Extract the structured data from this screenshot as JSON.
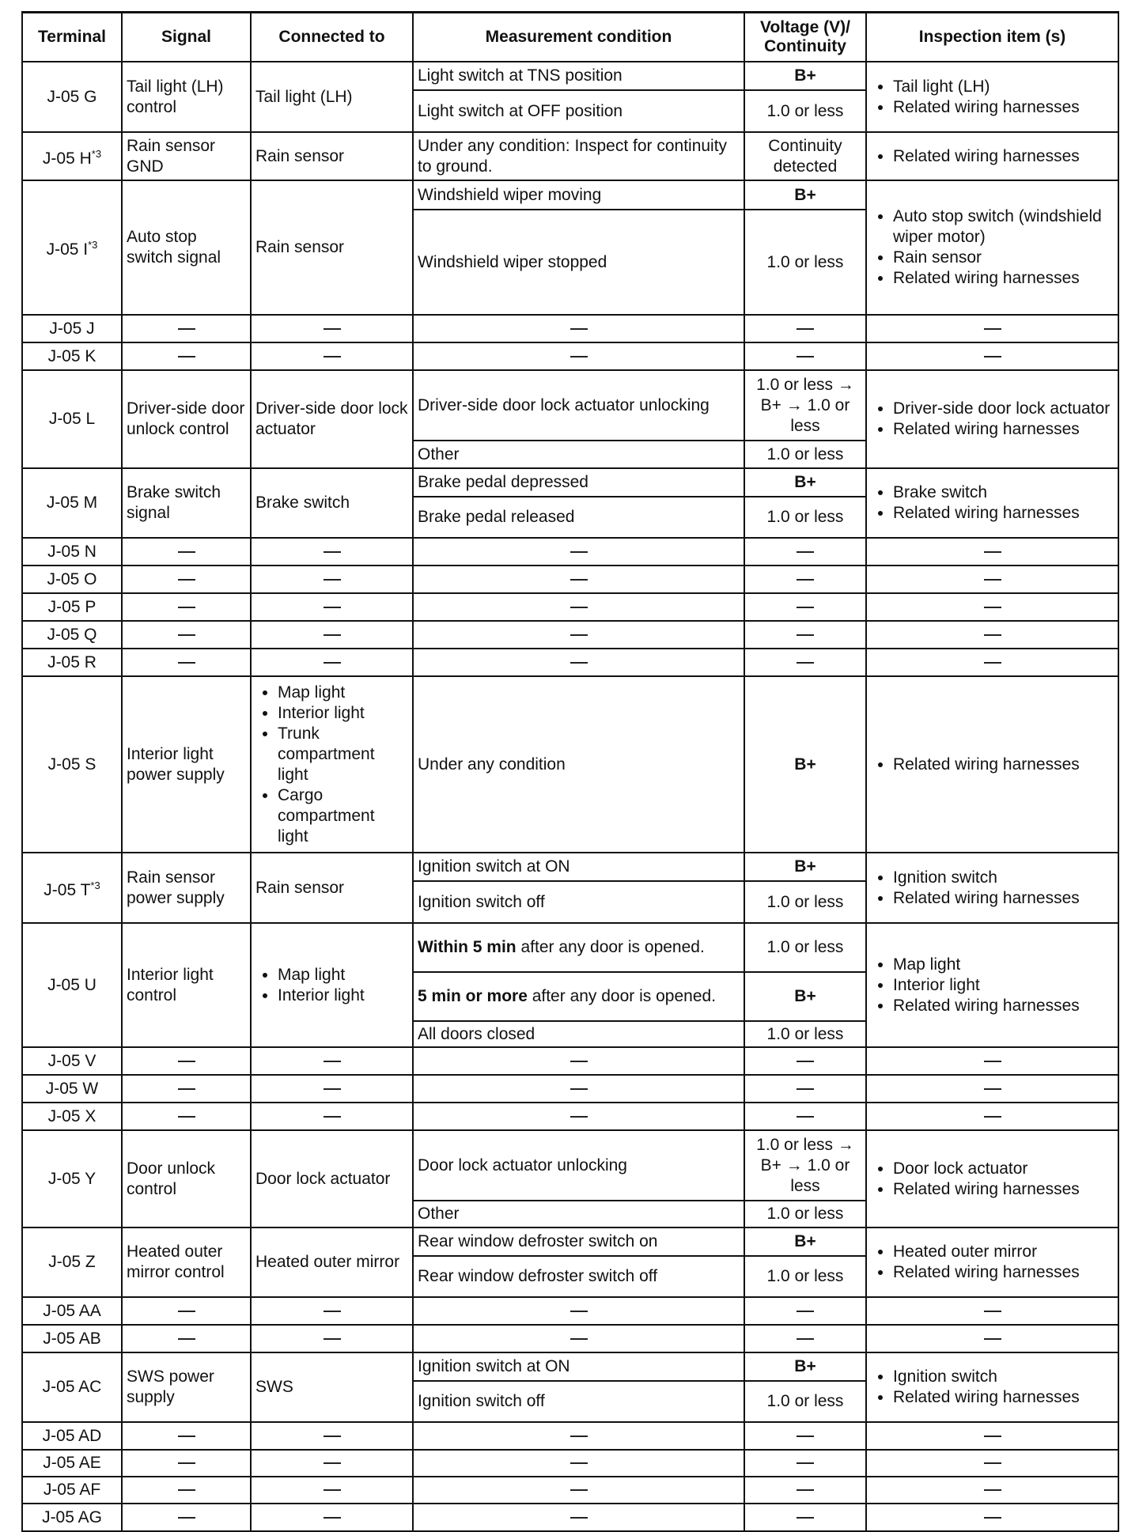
{
  "headers": [
    "Terminal",
    "Signal",
    "Connected to",
    "Measurement condition",
    "Voltage (V)/ Continuity",
    "Inspection item (s)"
  ],
  "rows": [
    {
      "terminal": "J-05 G",
      "sup": "",
      "signal": "Tail light (LH) control",
      "connected": [
        "Tail light (LH)"
      ],
      "conditions": [
        {
          "bold": "",
          "text": "Light switch at TNS position",
          "value": "B+"
        },
        {
          "bold": "",
          "text": "Light switch at OFF position",
          "value": "1.0 or less"
        }
      ],
      "inspection": [
        "Tail light (LH)",
        "Related wiring harnesses"
      ]
    },
    {
      "terminal": "J-05 H",
      "sup": "*3",
      "signal": "Rain sensor GND",
      "connected": [
        "Rain sensor"
      ],
      "conditions": [
        {
          "bold": "",
          "text": "Under any condition: Inspect for continuity to ground.",
          "value": "Continuity detected"
        }
      ],
      "inspection": [
        "Related wiring harnesses"
      ]
    },
    {
      "terminal": "J-05 I",
      "sup": "*3",
      "signal": "Auto stop switch signal",
      "connected": [
        "Rain sensor"
      ],
      "conditions": [
        {
          "bold": "",
          "text": "Windshield wiper moving",
          "value": "B+"
        },
        {
          "bold": "",
          "text": "Windshield wiper stopped",
          "value": "1.0 or less"
        }
      ],
      "inspection": [
        "Auto stop switch (windshield wiper motor)",
        "Rain sensor",
        "Related wiring harnesses"
      ]
    },
    {
      "terminal": "J-05 J",
      "dash": true
    },
    {
      "terminal": "J-05 K",
      "dash": true
    },
    {
      "terminal": "J-05 L",
      "sup": "",
      "signal": "Driver-side door unlock control",
      "connected": [
        "Driver-side door lock actuator"
      ],
      "conditions": [
        {
          "bold": "",
          "text": "Driver-side door lock actuator unlocking",
          "value": "1.0 or less → B+ → 1.0 or less"
        },
        {
          "bold": "",
          "text": "Other",
          "value": "1.0 or less"
        }
      ],
      "inspection": [
        "Driver-side door lock actuator",
        "Related wiring harnesses"
      ]
    },
    {
      "terminal": "J-05 M",
      "sup": "",
      "signal": "Brake switch signal",
      "connected": [
        "Brake switch"
      ],
      "conditions": [
        {
          "bold": "",
          "text": "Brake pedal depressed",
          "value": "B+"
        },
        {
          "bold": "",
          "text": "Brake pedal released",
          "value": "1.0 or less"
        }
      ],
      "inspection": [
        "Brake switch",
        "Related wiring harnesses"
      ]
    },
    {
      "terminal": "J-05 N",
      "dash": true
    },
    {
      "terminal": "J-05 O",
      "dash": true
    },
    {
      "terminal": "J-05 P",
      "dash": true
    },
    {
      "terminal": "J-05 Q",
      "dash": true
    },
    {
      "terminal": "J-05 R",
      "dash": true
    },
    {
      "terminal": "J-05 S",
      "sup": "",
      "signal": "Interior light power supply",
      "connected_list": [
        "Map light",
        "Interior light",
        "Trunk compartment light",
        "Cargo compartment light"
      ],
      "conditions": [
        {
          "bold": "",
          "text": "Under any condition",
          "value": "B+"
        }
      ],
      "inspection": [
        "Related wiring harnesses"
      ]
    },
    {
      "terminal": "J-05 T",
      "sup": "*3",
      "signal": "Rain sensor power supply",
      "connected": [
        "Rain sensor"
      ],
      "conditions": [
        {
          "bold": "",
          "text": "Ignition switch at ON",
          "value": "B+"
        },
        {
          "bold": "",
          "text": "Ignition switch off",
          "value": "1.0 or less"
        }
      ],
      "inspection": [
        "Ignition switch",
        "Related wiring harnesses"
      ]
    },
    {
      "terminal": "J-05 U",
      "sup": "",
      "signal": "Interior light control",
      "connected_list": [
        "Map light",
        "Interior light"
      ],
      "conditions": [
        {
          "bold": "Within 5 min",
          "text": " after any door is opened.",
          "value": "1.0 or less"
        },
        {
          "bold": "5 min or more",
          "text": " after any door is opened.",
          "value": "B+"
        },
        {
          "bold": "",
          "text": "All doors closed",
          "value": "1.0 or less"
        }
      ],
      "inspection": [
        "Map light",
        "Interior light",
        "Related wiring harnesses"
      ]
    },
    {
      "terminal": "J-05 V",
      "dash": true
    },
    {
      "terminal": "J-05 W",
      "dash": true
    },
    {
      "terminal": "J-05 X",
      "dash": true
    },
    {
      "terminal": "J-05 Y",
      "sup": "",
      "signal": "Door unlock control",
      "connected": [
        "Door lock actuator"
      ],
      "conditions": [
        {
          "bold": "",
          "text": "Door lock actuator unlocking",
          "value": "1.0 or less → B+ → 1.0 or less"
        },
        {
          "bold": "",
          "text": "Other",
          "value": "1.0 or less"
        }
      ],
      "inspection": [
        "Door lock actuator",
        "Related wiring harnesses"
      ]
    },
    {
      "terminal": "J-05 Z",
      "sup": "",
      "signal": "Heated outer mirror control",
      "connected": [
        "Heated outer mirror"
      ],
      "conditions": [
        {
          "bold": "",
          "text": "Rear window defroster switch on",
          "value": "B+"
        },
        {
          "bold": "",
          "text": "Rear window defroster switch off",
          "value": "1.0 or less"
        }
      ],
      "inspection": [
        "Heated outer mirror",
        "Related wiring harnesses"
      ]
    },
    {
      "terminal": "J-05 AA",
      "dash": true
    },
    {
      "terminal": "J-05 AB",
      "dash": true
    },
    {
      "terminal": "J-05 AC",
      "sup": "",
      "signal": "SWS power supply",
      "connected": [
        "SWS"
      ],
      "conditions": [
        {
          "bold": "",
          "text": "Ignition switch at ON",
          "value": "B+"
        },
        {
          "bold": "",
          "text": "Ignition switch off",
          "value": "1.0 or less"
        }
      ],
      "inspection": [
        "Ignition switch",
        "Related wiring harnesses"
      ]
    },
    {
      "terminal": "J-05 AD",
      "dash": true
    },
    {
      "terminal": "J-05 AE",
      "dash": true
    },
    {
      "terminal": "J-05 AF",
      "dash": true
    },
    {
      "terminal": "J-05 AG",
      "dash": true
    }
  ]
}
